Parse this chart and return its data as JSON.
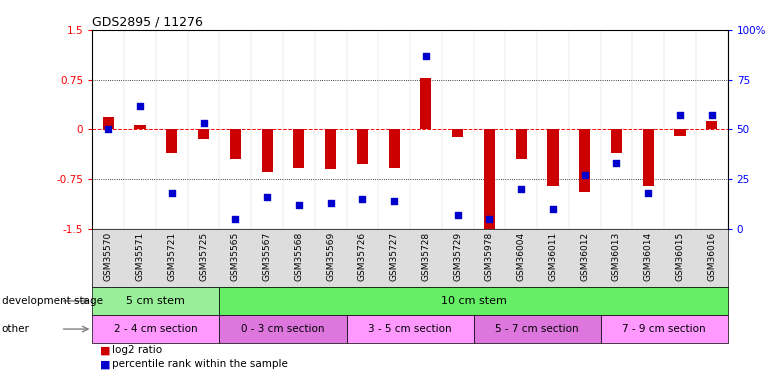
{
  "title": "GDS2895 / 11276",
  "samples": [
    "GSM35570",
    "GSM35571",
    "GSM35721",
    "GSM35725",
    "GSM35565",
    "GSM35567",
    "GSM35568",
    "GSM35569",
    "GSM35726",
    "GSM35727",
    "GSM35728",
    "GSM35729",
    "GSM35978",
    "GSM36004",
    "GSM36011",
    "GSM36012",
    "GSM36013",
    "GSM36014",
    "GSM36015",
    "GSM36016"
  ],
  "log2_ratio": [
    0.18,
    0.07,
    -0.35,
    -0.15,
    -0.45,
    -0.65,
    -0.58,
    -0.6,
    -0.52,
    -0.58,
    0.78,
    -0.12,
    -1.5,
    -0.45,
    -0.85,
    -0.95,
    -0.35,
    -0.85,
    -0.1,
    0.12
  ],
  "percentile": [
    50,
    62,
    18,
    53,
    5,
    16,
    12,
    13,
    15,
    14,
    87,
    7,
    5,
    20,
    10,
    27,
    33,
    18,
    57,
    57
  ],
  "ylim_left": [
    -1.5,
    1.5
  ],
  "ylim_right": [
    0,
    100
  ],
  "yticks_left": [
    -1.5,
    -0.75,
    0,
    0.75,
    1.5
  ],
  "yticks_right": [
    0,
    25,
    50,
    75,
    100
  ],
  "bar_color": "#cc0000",
  "dot_color": "#0000cc",
  "dev_stage_groups": [
    {
      "label": "5 cm stem",
      "start": 0,
      "end": 4,
      "color": "#99ee99"
    },
    {
      "label": "10 cm stem",
      "start": 4,
      "end": 20,
      "color": "#66ee66"
    }
  ],
  "other_groups": [
    {
      "label": "2 - 4 cm section",
      "start": 0,
      "end": 4,
      "color": "#ff99ff"
    },
    {
      "label": "0 - 3 cm section",
      "start": 4,
      "end": 8,
      "color": "#dd77dd"
    },
    {
      "label": "3 - 5 cm section",
      "start": 8,
      "end": 12,
      "color": "#ff99ff"
    },
    {
      "label": "5 - 7 cm section",
      "start": 12,
      "end": 16,
      "color": "#dd77dd"
    },
    {
      "label": "7 - 9 cm section",
      "start": 16,
      "end": 20,
      "color": "#ff99ff"
    }
  ],
  "legend_red_label": "log2 ratio",
  "legend_blue_label": "percentile rank within the sample",
  "dev_stage_label": "development stage",
  "other_label": "other",
  "bar_width": 0.35,
  "dot_size": 18,
  "xtick_bg_color": "#dddddd"
}
